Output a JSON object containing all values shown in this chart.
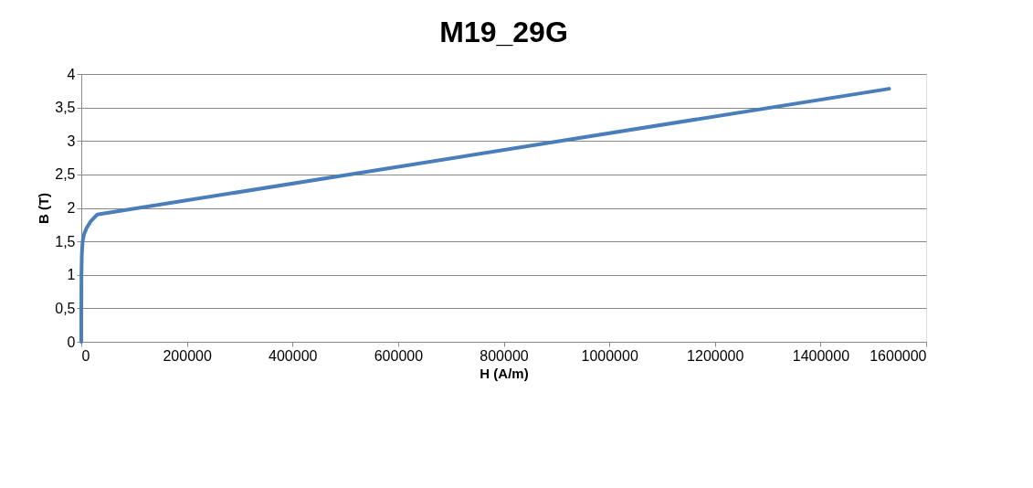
{
  "chart_data": {
    "type": "line",
    "title": "M19_29G",
    "xlabel": "H (A/m)",
    "ylabel": "B (T)",
    "series": [
      {
        "color": "#4a7ebb",
        "x": [
          0,
          100,
          300,
          1000,
          2500,
          5000,
          10000,
          18000,
          30000,
          1530000
        ],
        "values": [
          0,
          0.5,
          1.0,
          1.3,
          1.5,
          1.6,
          1.7,
          1.8,
          1.9,
          3.78
        ]
      }
    ],
    "xlim": [
      0,
      1600000
    ],
    "xticks": [
      0,
      200000,
      400000,
      600000,
      800000,
      1000000,
      1200000,
      1400000,
      1600000
    ],
    "ylim": [
      0,
      4
    ],
    "yticks": [
      0,
      {
        "value": 0.5,
        "label": "0,5"
      },
      1,
      {
        "value": 1.5,
        "label": "1,5"
      },
      2,
      {
        "value": 2.5,
        "label": "2,5"
      },
      3,
      {
        "value": 3.5,
        "label": "3,5"
      },
      4
    ],
    "grid": "y",
    "marker": "none",
    "line_style": "solid"
  }
}
